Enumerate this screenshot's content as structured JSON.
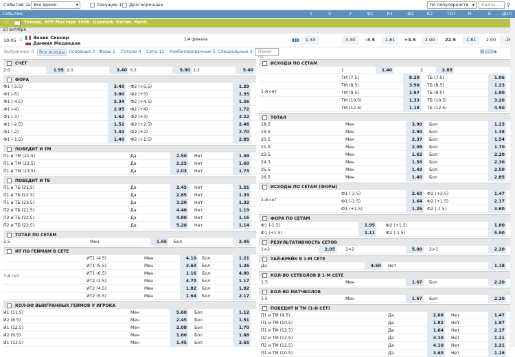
{
  "filter": {
    "events_label": "События за:",
    "time_select": "Все время",
    "current_label": "Текущие",
    "current_count": "1",
    "longterm_label": "Долгосрочные",
    "sort_select": "По популярности",
    "search_placeholder": "Найти..."
  },
  "columns": [
    "Событие",
    "1",
    "X",
    "2",
    "Ф1",
    "К1",
    "Ф2",
    "К2",
    "ТОТ",
    "М",
    "Б",
    "ДОП"
  ],
  "championship": "Теннис. ATP Мастерс 1000. Шанхай. Китай. Hard.",
  "date": "10 октября",
  "event": {
    "time": "10:05",
    "player1": "Янник Синнер",
    "player2": "Даниил Медведев",
    "stage": "1/4 финала",
    "odds": [
      "1.33",
      "",
      "3.30",
      "-3.5",
      "1.81",
      "+3.5",
      "2.00",
      "22.5",
      "1.81",
      "2.00",
      "-26"
    ]
  },
  "tabs": [
    "Выбранные 0",
    "Все исходы",
    "Основные 3",
    "Форы 2",
    "Тоталы 4",
    "Сеты 11",
    "Комбинированные 5",
    "Специальные 3"
  ],
  "tab_search_placeholder": "Поиск по",
  "left": {
    "score": {
      "title": "СЧЕТ",
      "cells": [
        [
          "2:0",
          "1.95"
        ],
        [
          "2:1",
          "3.40"
        ],
        [
          "0:2",
          "5.90"
        ],
        [
          "1:2",
          "5.40"
        ]
      ]
    },
    "fora": {
      "title": "ФОРА",
      "rows": [
        [
          "Ф1 (-5.5)",
          "3.40",
          "Ф2 (+5.5)",
          "1.29"
        ],
        [
          "Ф1 (-5)",
          "3.00",
          "Ф2 (+5)",
          "1.35"
        ],
        [
          "Ф1 (-4.5)",
          "2.34",
          "Ф2 (+4.5)",
          "1.56"
        ],
        [
          "Ф1 (-4)",
          "2.05",
          "Ф2 (+4)",
          "1.72"
        ],
        [
          "Ф1 (-3)",
          "1.62",
          "Ф2 (+3)",
          "2.22"
        ],
        [
          "Ф1 (-2.5)",
          "1.52",
          "Ф2 (+2.5)",
          "2.46"
        ],
        [
          "Ф1 (-2)",
          "1.44",
          "Ф2 (+2)",
          "2.70"
        ],
        [
          "Ф1 (-1.5)",
          "1.40",
          "Ф2 (+1.5)",
          "2.85"
        ]
      ]
    },
    "win_tm": {
      "title": "ПОБЕДИТ И ТМ",
      "rows": [
        [
          "П1 и ТМ (21.5)",
          "Да",
          "2.50",
          "Нет",
          "1.49"
        ],
        [
          "П1 и ТМ (22.5)",
          "Да",
          "2.25",
          "Нет",
          "1.60"
        ],
        [
          "П1 и ТМ (23.5)",
          "Да",
          "2.03",
          "Нет",
          "1.73"
        ]
      ]
    },
    "win_tb": {
      "title": "ПОБЕДИТ И ТБ",
      "rows": [
        [
          "П1 и ТБ (21.5)",
          "Да",
          "2.45",
          "Нет",
          "1.51"
        ],
        [
          "П1 и ТБ (22.5)",
          "Да",
          "2.85",
          "Нет",
          "1.39"
        ],
        [
          "П1 и ТБ (23.5)",
          "Да",
          "3.20",
          "Нет",
          "1.32"
        ],
        [
          "П2 и ТБ (21.5)",
          "Да",
          "4.40",
          "Нет",
          "1.19"
        ],
        [
          "П2 и ТБ (22.5)",
          "Да",
          "4.80",
          "Нет",
          "1.16"
        ],
        [
          "П2 и ТБ (23.5)",
          "Да",
          "5.20",
          "Нет",
          "1.14"
        ]
      ]
    },
    "total_sets": {
      "title": "ТОТАЛ ПО СЕТАМ",
      "row": [
        "2.5",
        "Мен",
        "1.55",
        "Бол",
        "2.45"
      ]
    },
    "it_games": {
      "title": "ИТ ПО ГЕЙМАМ В СЕТЕ",
      "set": "1-й сет",
      "rows": [
        [
          "ИТ1 (4.5)",
          "Мен",
          "4.10",
          "Бол",
          "1.21"
        ],
        [
          "ИТ1 (5.5)",
          "Мен",
          "3.60",
          "Бол",
          "1.26"
        ],
        [
          "ИТ1 (6.5)",
          "Мен",
          "1.16",
          "Бол",
          "4.80"
        ],
        [
          "ИТ2 (2.5)",
          "Мен",
          "4.70",
          "Бол",
          "1.17"
        ],
        [
          "ИТ2 (4.5)",
          "Мен",
          "1.82",
          "Бол",
          "1.92"
        ],
        [
          "ИТ2 (5.5)",
          "Мен",
          "1.64",
          "Бол",
          "2.17"
        ]
      ]
    },
    "games_won": {
      "title": "КОЛ-ВО ВЫИГРАННЫХ ГЕЙМОВ У ИГРОКА",
      "rows": [
        [
          "И1 (11.5)",
          "Мен",
          "5.60",
          "Бол",
          "1.12"
        ],
        [
          "И2 (8.5)",
          "Мен",
          "2.45",
          "Бол",
          "1.51"
        ],
        [
          "И1 (12.5)",
          "Мен",
          "2.08",
          "Бол",
          "1.70"
        ],
        [
          "И2 (9.5)",
          "Мен",
          "1.60",
          "Бол",
          "1.68"
        ],
        [
          "И1 (13.5)",
          "Мен",
          "1.45",
          "Бол",
          "2.65"
        ]
      ]
    }
  },
  "right": {
    "sets_outcome": {
      "title": "ИСХОДЫ ПО СЕТАМ",
      "top": [
        "1",
        "1.40",
        "2",
        "2.85"
      ],
      "set": "1-й сет",
      "rows": [
        [
          "ТМ (7.5)",
          "8.20",
          "ТБ (7.5)",
          "1.06"
        ],
        [
          "ТМ (8.5)",
          "3.90",
          "ТБ (8.5)",
          "1.23"
        ],
        [
          "ТМ (9.5)",
          "1.97",
          "ТБ (9.5)",
          "1.80"
        ],
        [
          "ТМ (10.5)",
          "1.33",
          "ТБ (10.5)",
          "3.20"
        ],
        [
          "ТМ (12.5)",
          "1.18",
          "ТБ (12.5)",
          "4.50"
        ]
      ]
    },
    "total": {
      "title": "ТОТАЛ",
      "rows": [
        [
          "18.5",
          "Мен",
          "3.90",
          "Бол",
          "1.23"
        ],
        [
          "19.5",
          "Мен",
          "2.90",
          "Бол",
          "1.38"
        ],
        [
          "20.5",
          "Мен",
          "2.37",
          "Бол",
          "1.54"
        ],
        [
          "21.5",
          "Мен",
          "2.08",
          "Бол",
          "1.70"
        ],
        [
          "23.5",
          "Мен",
          "1.62",
          "Бол",
          "2.20"
        ],
        [
          "24.5",
          "Мен",
          "1.58",
          "Бол",
          "2.30"
        ],
        [
          "25.5",
          "Мен",
          "1.49",
          "Бол",
          "2.50"
        ],
        [
          "26.5",
          "Мен",
          "1.40",
          "Бол",
          "2.85"
        ]
      ]
    },
    "sets_fora": {
      "title": "ИСХОДЫ ПО СЕТАМ (ФОРЫ)",
      "set": "1-й сет",
      "rows": [
        [
          "Ф1 (-2.5)",
          "2.60",
          "Ф2 (+2.5)",
          "1.47"
        ],
        [
          "Ф1 (-1.5)",
          "1.64",
          "Ф2 (+1.5)",
          "2.17"
        ],
        [
          "Ф1 (+1.5)",
          "1.26",
          "Ф2 (-1.5)",
          "3.60"
        ]
      ]
    },
    "fora_sets": {
      "title": "ФОРА ПО СЕТАМ",
      "rows": [
        [
          "Ф1 (-1.5)",
          "1.95",
          "Ф2 (+1.5)",
          "1.80"
        ],
        [
          "Ф1 (+1.5)",
          "1.11",
          "Ф2 (-1.5)",
          "5.90"
        ]
      ]
    },
    "sets_result": {
      "title": "РЕЗУЛЬТАТИВНОСТЬ СЕТОВ",
      "row": [
        "1>2",
        "2.05",
        "1=2",
        "5.00",
        "2>1",
        "2.20"
      ]
    },
    "tiebreak": {
      "title": "ТАЙ-БРЕЙК В 1-М СЕТЕ",
      "row": [
        "Да",
        "4.50",
        "Нет",
        "1.18"
      ]
    },
    "set_count": {
      "title": "КОЛ-ВО СЕТБОЛОВ В 1-М СЕТЕ",
      "row": [
        "1.5",
        "Мен",
        "1.67",
        "Бол",
        "2.20"
      ]
    },
    "matchballs": {
      "title": "КОЛ-ВО МАТЧБОЛОВ",
      "row": [
        "1.5",
        "Мен",
        "1.67",
        "Бол",
        "2.20"
      ]
    },
    "win_tm_set": {
      "title": "ПОБЕДИТ И ТМ (1-Й СЕТ)",
      "rows": [
        [
          "П1 и ТМ (9.5)",
          "Да",
          "2.60",
          "Нет",
          "1.47"
        ],
        [
          "П1 и ТМ (10.5)",
          "Да",
          "1.82",
          "Нет",
          "1.97"
        ],
        [
          "П1 и ТМ (12.5)",
          "Да",
          "1.64",
          "Нет",
          "2.17"
        ],
        [
          "П2 и ТМ (12.5)",
          "Да",
          "4.10",
          "Нет",
          "1.21"
        ],
        [
          "П2 и ТМ (12.5)",
          "Да",
          "4.10",
          "Нет",
          "1.21"
        ],
        [
          "П1 и ТМ (10.5)",
          "Да",
          "3.60",
          "Нет",
          "1.26"
        ]
      ]
    }
  }
}
